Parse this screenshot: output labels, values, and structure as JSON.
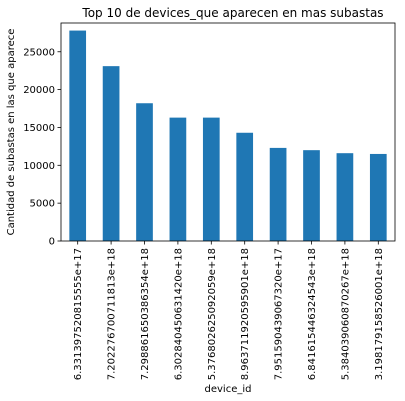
{
  "chart_data": {
    "type": "bar",
    "title": "Top 10 de devices_que aparecen en mas subastas",
    "xlabel": "device_id",
    "ylabel": "Cantidad de subastas en las que aparece",
    "categories": [
      "6.331397520815555e+17",
      "7.202276700711813e+18",
      "7.298861650386354e+18",
      "6.302840450631420e+18",
      "5.376802625092059e+18",
      "8.963711920595901e+18",
      "7.951590439067320e+17",
      "6.841615446324543e+18",
      "5.384039060870267e+18",
      "3.198179158526001e+18"
    ],
    "values": [
      27800,
      23100,
      18200,
      16300,
      16300,
      14300,
      12300,
      12000,
      11600,
      11500
    ],
    "ylim": [
      0,
      28800
    ],
    "yticks": [
      0,
      5000,
      10000,
      15000,
      20000,
      25000
    ],
    "grid": false,
    "bar_color": "#1f77b4"
  }
}
